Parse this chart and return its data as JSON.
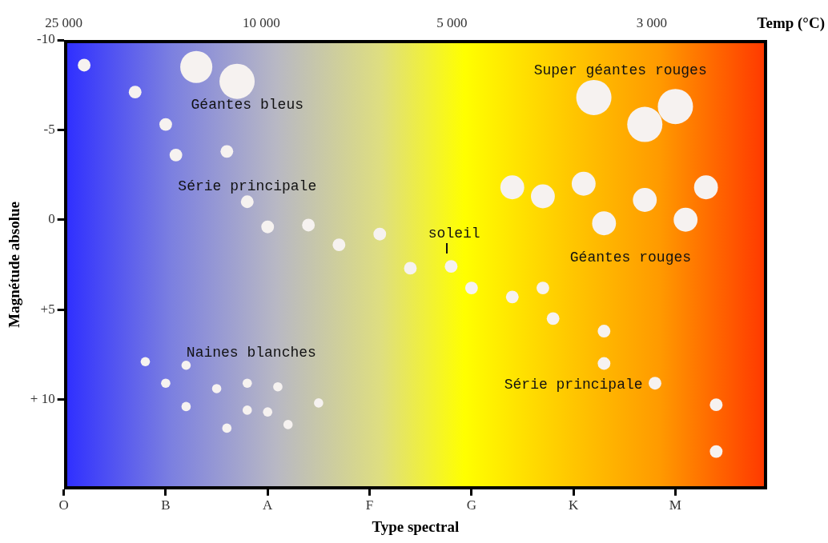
{
  "chart_data": {
    "type": "bubble",
    "xlabel": "Type spectral",
    "ylabel": "Magnétude absolue",
    "categories": [
      "O",
      null,
      null,
      null,
      null,
      null,
      null,
      null,
      null,
      null,
      "B",
      null,
      null,
      null,
      null,
      null,
      null,
      null,
      null,
      null,
      "A",
      null,
      null,
      null,
      null,
      null,
      null,
      null,
      null,
      null,
      "F",
      null,
      null,
      null,
      null,
      null,
      null,
      null,
      null,
      null,
      "G",
      null,
      null,
      null,
      null,
      null,
      null,
      null,
      null,
      null,
      "K",
      null,
      null,
      null,
      null,
      null,
      null,
      null,
      null,
      null,
      "M",
      null,
      null,
      null,
      null,
      null,
      null,
      null,
      null,
      null
    ],
    "ylim": [
      15,
      -10
    ],
    "yticks": [
      {
        "value": -10,
        "label": "-10"
      },
      {
        "value": -5,
        "label": "-5"
      },
      0,
      {
        "value": 5,
        "label": "+5"
      },
      {
        "value": 10,
        "label": "+ 10"
      }
    ],
    "series": [
      {
        "color": "#f6f2f0",
        "values": [
          null,
          null,
          -8.6,
          null,
          null,
          null,
          null,
          -7.1,
          null,
          null,
          -5.3,
          -3.6,
          null,
          null,
          null,
          null,
          -3.8,
          null,
          -1.0,
          null,
          0.4,
          null,
          null,
          null,
          0.3,
          null,
          null,
          1.4,
          null,
          null,
          null,
          0.8,
          null,
          null,
          2.7,
          null,
          null,
          null,
          2.6,
          null,
          3.8,
          null,
          null,
          null,
          4.3,
          null,
          null,
          3.8,
          5.5,
          null,
          null,
          null,
          null,
          6.2,
          null,
          null,
          null,
          null,
          9.1,
          null,
          null,
          null,
          null,
          null,
          10.3,
          null,
          null,
          null,
          null,
          null
        ],
        "sizes": [
          null,
          null,
          0.13,
          null,
          null,
          null,
          null,
          0.13,
          null,
          null,
          0.13,
          0.13,
          null,
          null,
          null,
          null,
          0.13,
          null,
          0.13,
          null,
          0.13,
          null,
          null,
          null,
          0.13,
          null,
          null,
          0.13,
          null,
          null,
          null,
          0.13,
          null,
          null,
          0.13,
          null,
          null,
          null,
          0.13,
          null,
          0.13,
          null,
          null,
          null,
          0.13,
          null,
          null,
          0.13,
          0.13,
          null,
          null,
          null,
          null,
          0.13,
          null,
          null,
          null,
          null,
          0.13,
          null,
          null,
          null,
          null,
          null,
          0.13,
          null,
          null,
          null,
          null,
          null
        ]
      },
      {
        "color": "#f6f2f0",
        "values": [
          null,
          null,
          null,
          null,
          null,
          null,
          null,
          null,
          null,
          null,
          null,
          null,
          null,
          null,
          null,
          null,
          null,
          null,
          null,
          null,
          null,
          null,
          null,
          null,
          null,
          null,
          null,
          null,
          null,
          null,
          null,
          null,
          null,
          null,
          null,
          null,
          null,
          null,
          null,
          null,
          null,
          null,
          null,
          null,
          null,
          null,
          null,
          null,
          null,
          null,
          null,
          null,
          null,
          8.0,
          null,
          null,
          null,
          null,
          null,
          null,
          null,
          null,
          null,
          null,
          12.9,
          null,
          null,
          null,
          null,
          null
        ],
        "sizes": [
          null,
          null,
          null,
          null,
          null,
          null,
          null,
          null,
          null,
          null,
          null,
          null,
          null,
          null,
          null,
          null,
          null,
          null,
          null,
          null,
          null,
          null,
          null,
          null,
          null,
          null,
          null,
          null,
          null,
          null,
          null,
          null,
          null,
          null,
          null,
          null,
          null,
          null,
          null,
          null,
          null,
          null,
          null,
          null,
          null,
          null,
          null,
          null,
          null,
          null,
          null,
          null,
          null,
          0.13,
          null,
          null,
          null,
          null,
          null,
          null,
          null,
          null,
          null,
          null,
          0.13,
          null,
          null,
          null,
          null,
          null
        ]
      },
      {
        "color": "#f6f2f0",
        "values": [
          null,
          null,
          null,
          null,
          null,
          null,
          null,
          null,
          null,
          null,
          null,
          null,
          null,
          -8.5,
          null,
          null,
          null,
          -7.7,
          null,
          null,
          null,
          null,
          null,
          null,
          null,
          null,
          null,
          null,
          null,
          null,
          null,
          null,
          null,
          null,
          null,
          null,
          null,
          null,
          null,
          null,
          null,
          null,
          null,
          null,
          null,
          null,
          null,
          null,
          null,
          null,
          null,
          null,
          -6.8,
          null,
          null,
          null,
          null,
          -5.3,
          null,
          null,
          -6.3,
          null,
          null,
          null,
          null,
          null,
          null,
          null,
          null,
          null
        ],
        "sizes": [
          null,
          null,
          null,
          null,
          null,
          null,
          null,
          null,
          null,
          null,
          null,
          null,
          null,
          0.83,
          null,
          null,
          null,
          1,
          null,
          null,
          null,
          null,
          null,
          null,
          null,
          null,
          null,
          null,
          null,
          null,
          null,
          null,
          null,
          null,
          null,
          null,
          null,
          null,
          null,
          null,
          null,
          null,
          null,
          null,
          null,
          null,
          null,
          null,
          null,
          null,
          null,
          null,
          1,
          null,
          null,
          null,
          null,
          1,
          null,
          null,
          1,
          null,
          null,
          null,
          null,
          null,
          null,
          null,
          null,
          null
        ]
      },
      {
        "color": "#f6f2f0",
        "values": [
          null,
          null,
          null,
          null,
          null,
          null,
          null,
          null,
          null,
          null,
          null,
          null,
          null,
          null,
          null,
          null,
          null,
          null,
          null,
          null,
          null,
          null,
          null,
          null,
          null,
          null,
          null,
          null,
          null,
          null,
          null,
          null,
          null,
          null,
          null,
          null,
          null,
          null,
          null,
          null,
          null,
          null,
          null,
          null,
          -1.8,
          null,
          null,
          -1.3,
          null,
          null,
          null,
          -2.0,
          null,
          0.2,
          null,
          null,
          null,
          -1.1,
          null,
          null,
          null,
          0.0,
          null,
          -1.8,
          null,
          null,
          null,
          null,
          null,
          null
        ],
        "sizes": [
          null,
          null,
          null,
          null,
          null,
          null,
          null,
          null,
          null,
          null,
          null,
          null,
          null,
          null,
          null,
          null,
          null,
          null,
          null,
          null,
          null,
          null,
          null,
          null,
          null,
          null,
          null,
          null,
          null,
          null,
          null,
          null,
          null,
          null,
          null,
          null,
          null,
          null,
          null,
          null,
          null,
          null,
          null,
          null,
          0.46,
          null,
          null,
          0.46,
          null,
          null,
          null,
          0.46,
          null,
          0.46,
          null,
          null,
          null,
          0.46,
          null,
          null,
          null,
          0.46,
          null,
          0.46,
          null,
          null,
          null,
          null,
          null,
          null
        ]
      },
      {
        "color": "#f6f2f0",
        "values": [
          null,
          null,
          null,
          null,
          null,
          null,
          null,
          null,
          7.9,
          null,
          9.1,
          null,
          8.1,
          null,
          null,
          9.4,
          11.6,
          null,
          9.1,
          null,
          10.7,
          9.3,
          11.4,
          null,
          null,
          10.2,
          null,
          null,
          null,
          null,
          null,
          null,
          null,
          null,
          null,
          null,
          null,
          null,
          null,
          null,
          null,
          null,
          null,
          null,
          null,
          null,
          null,
          null,
          null,
          null,
          null,
          null,
          null,
          null,
          null,
          null,
          null,
          null,
          null,
          null,
          null,
          null,
          null,
          null,
          null,
          null,
          null,
          null,
          null,
          null
        ],
        "sizes": [
          null,
          null,
          null,
          null,
          null,
          null,
          null,
          null,
          0.07,
          null,
          0.07,
          null,
          0.07,
          null,
          null,
          0.07,
          0.07,
          null,
          0.07,
          null,
          0.07,
          0.07,
          0.07,
          null,
          null,
          0.07,
          null,
          null,
          null,
          null,
          null,
          null,
          null,
          null,
          null,
          null,
          null,
          null,
          null,
          null,
          null,
          null,
          null,
          null,
          null,
          null,
          null,
          null,
          null,
          null,
          null,
          null,
          null,
          null,
          null,
          null,
          null,
          null,
          null,
          null,
          null,
          null,
          null,
          null,
          null,
          null,
          null,
          null,
          null,
          null
        ]
      },
      {
        "color": "#f6f2f0",
        "values": [
          null,
          null,
          null,
          null,
          null,
          null,
          null,
          null,
          null,
          null,
          null,
          null,
          10.4,
          null,
          null,
          null,
          null,
          null,
          10.6,
          null,
          null,
          null,
          null,
          null,
          null,
          null,
          null,
          null,
          null,
          null,
          null,
          null,
          null,
          null,
          null,
          null,
          null,
          null,
          null,
          null,
          null,
          null,
          null,
          null,
          null,
          null,
          null,
          null,
          null,
          null,
          null,
          null,
          null,
          null,
          null,
          null,
          null,
          null,
          null,
          null,
          null,
          null,
          null,
          null,
          null,
          null,
          null,
          null,
          null,
          null
        ],
        "sizes": [
          null,
          null,
          null,
          null,
          null,
          null,
          null,
          null,
          null,
          null,
          null,
          null,
          0.07,
          null,
          null,
          null,
          null,
          null,
          0.07,
          null,
          null,
          null,
          null,
          null,
          null,
          null,
          null,
          null,
          null,
          null,
          null,
          null,
          null,
          null,
          null,
          null,
          null,
          null,
          null,
          null,
          null,
          null,
          null,
          null,
          null,
          null,
          null,
          null,
          null,
          null,
          null,
          null,
          null,
          null,
          null,
          null,
          null,
          null,
          null,
          null,
          null,
          null,
          null,
          null,
          null,
          null,
          null,
          null,
          null,
          null
        ]
      }
    ],
    "annotations": [
      "25 000",
      "10 000",
      "5 000",
      "3 000",
      "Temp (°C)",
      "Géantes bleus",
      "Série principale",
      "soleil",
      "Super géantes rouges",
      "Géantes rouges",
      "Naines blanches",
      "Série principale"
    ]
  }
}
